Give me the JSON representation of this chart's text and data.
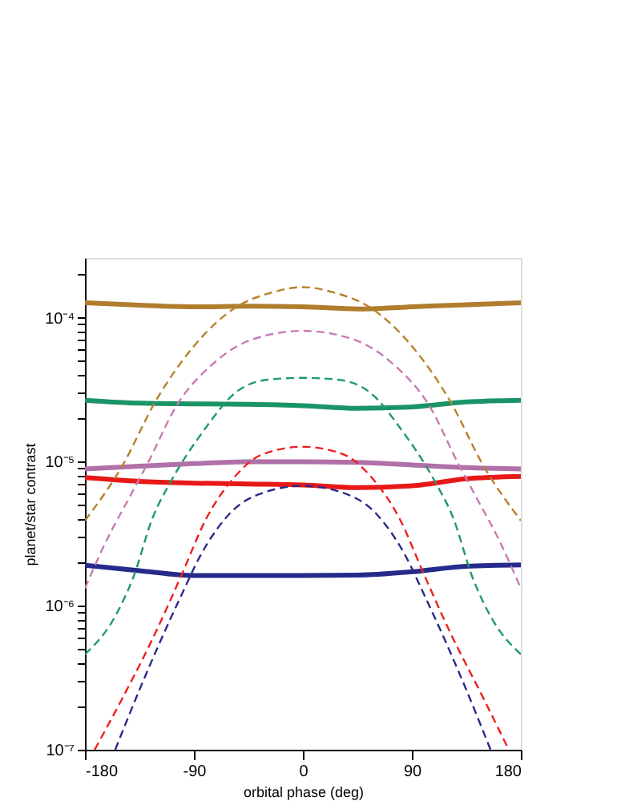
{
  "chart_data": {
    "type": "line",
    "xlabel": "orbital phase (deg)",
    "ylabel": "planet/star contrast",
    "log": "y",
    "grid": false,
    "marker": "none",
    "xlim": [
      -180,
      180
    ],
    "xticks": [
      -180,
      -90,
      0,
      90,
      180
    ],
    "ylim": [
      1e-07,
      0.00026
    ],
    "yticks": [
      {
        "value": 1e-07,
        "label": "10⁻⁷"
      },
      {
        "value": 2e-07,
        "label": null
      },
      {
        "value": 3e-07,
        "label": null
      },
      {
        "value": 4e-07,
        "label": null
      },
      {
        "value": 5e-07,
        "label": null
      },
      {
        "value": 6e-07,
        "label": null
      },
      {
        "value": 7e-07,
        "label": null
      },
      {
        "value": 8e-07,
        "label": null
      },
      {
        "value": 9e-07,
        "label": null
      },
      {
        "value": 1e-06,
        "label": "10⁻⁶"
      },
      {
        "value": 2e-06,
        "label": null
      },
      {
        "value": 3e-06,
        "label": null
      },
      {
        "value": 4e-06,
        "label": null
      },
      {
        "value": 5e-06,
        "label": null
      },
      {
        "value": 6e-06,
        "label": null
      },
      {
        "value": 7e-06,
        "label": null
      },
      {
        "value": 8e-06,
        "label": null
      },
      {
        "value": 9e-06,
        "label": null
      },
      {
        "value": 1e-05,
        "label": "10⁻⁵"
      },
      {
        "value": 2e-05,
        "label": null
      },
      {
        "value": 3e-05,
        "label": null
      },
      {
        "value": 4e-05,
        "label": null
      },
      {
        "value": 5e-05,
        "label": null
      },
      {
        "value": 6e-05,
        "label": null
      },
      {
        "value": 7e-05,
        "label": null
      },
      {
        "value": 8e-05,
        "label": null
      },
      {
        "value": 9e-05,
        "label": null
      },
      {
        "value": 0.0001,
        "label": "10⁻⁴"
      },
      {
        "value": 0.0002,
        "label": null
      }
    ],
    "series": [
      {
        "color": "#b8822a",
        "line_style": "dashed",
        "x": [
          -180,
          -149,
          -122,
          -91,
          -56,
          -25,
          0,
          25,
          56,
          91,
          122,
          149,
          180
        ],
        "values": [
          3.9e-06,
          9.4e-06,
          2.6e-05,
          6.2e-05,
          0.000117,
          0.00015,
          0.000163,
          0.00015,
          0.000117,
          6.2e-05,
          2.6e-05,
          9.4e-06,
          3.9e-06
        ]
      },
      {
        "color": "#c77bb5",
        "line_style": "dashed",
        "x": [
          -180,
          -162,
          -144,
          -127,
          -105,
          -74,
          -43,
          0,
          43,
          74,
          105,
          127,
          144,
          162,
          180
        ],
        "values": [
          1.32e-06,
          2.86e-06,
          5.5e-06,
          1.02e-05,
          2.4e-05,
          4.8e-05,
          7e-05,
          8.1e-05,
          7e-05,
          4.8e-05,
          2.4e-05,
          1.02e-05,
          5.5e-06,
          2.86e-06,
          1.32e-06
        ]
      },
      {
        "color": "#1e9a6a",
        "line_style": "dashed",
        "x": [
          -180,
          -157,
          -140,
          -124,
          -109,
          -82,
          -56,
          -30,
          0,
          30,
          56,
          82,
          109,
          124,
          140,
          157,
          180
        ],
        "values": [
          4.6e-07,
          7.9e-07,
          1.58e-06,
          4.1e-06,
          7.3e-06,
          1.64e-05,
          3e-05,
          3.7e-05,
          3.82e-05,
          3.7e-05,
          3e-05,
          1.64e-05,
          7.3e-06,
          4.1e-06,
          1.58e-06,
          7.9e-07,
          4.6e-07
        ]
      },
      {
        "color": "#ee2020",
        "line_style": "dashed",
        "x": [
          -172,
          -150,
          -121,
          -100,
          -80,
          -56,
          -34,
          0,
          34,
          56,
          80,
          100,
          121,
          150,
          170
        ],
        "values": [
          1e-07,
          2.2e-07,
          6.7e-07,
          1.65e-06,
          4e-06,
          7.9e-06,
          1.12e-05,
          1.27e-05,
          1.12e-05,
          7.9e-06,
          4e-06,
          1.65e-06,
          6.7e-07,
          2.2e-07,
          1e-07
        ]
      },
      {
        "color": "#2a2a8c",
        "line_style": "dashed",
        "x": [
          -155,
          -135,
          -118,
          -100,
          -85,
          -60,
          -30,
          0,
          30,
          60,
          85,
          100,
          118,
          135,
          155
        ],
        "values": [
          1e-07,
          2.6e-07,
          5.6e-07,
          1.2e-06,
          2.2e-06,
          4.4e-06,
          6.2e-06,
          6.8e-06,
          6.2e-06,
          4.4e-06,
          2.2e-06,
          1.2e-06,
          5.6e-07,
          2.6e-07,
          1e-07
        ]
      },
      {
        "color": "#b07d2e",
        "line_style": "solid",
        "x": [
          -180,
          -135,
          -90,
          -45,
          0,
          45,
          90,
          135,
          180
        ],
        "values": [
          0.000127,
          0.000122,
          0.000119,
          0.00012,
          0.000119,
          0.000115,
          0.000119,
          0.000123,
          0.000127
        ]
      },
      {
        "color": "#1a9466",
        "line_style": "solid",
        "x": [
          -180,
          -135,
          -90,
          -45,
          0,
          45,
          90,
          135,
          180
        ],
        "values": [
          2.67e-05,
          2.55e-05,
          2.52e-05,
          2.5e-05,
          2.45e-05,
          2.35e-05,
          2.4e-05,
          2.6e-05,
          2.67e-05
        ]
      },
      {
        "color": "#b070a8",
        "line_style": "solid",
        "x": [
          -180,
          -135,
          -90,
          -45,
          0,
          45,
          90,
          135,
          180
        ],
        "values": [
          8.9e-06,
          9.3e-06,
          9.7e-06,
          1e-05,
          1e-05,
          9.9e-06,
          9.5e-06,
          9.1e-06,
          8.9e-06
        ]
      },
      {
        "color": "#e81818",
        "line_style": "solid",
        "x": [
          -180,
          -135,
          -90,
          -45,
          0,
          45,
          90,
          135,
          180
        ],
        "values": [
          7.75e-06,
          7.3e-06,
          7.1e-06,
          7e-06,
          6.9e-06,
          6.6e-06,
          6.8e-06,
          7.6e-06,
          7.9e-06
        ]
      },
      {
        "color": "#262a8a",
        "line_style": "solid",
        "x": [
          -180,
          -135,
          -90,
          -45,
          0,
          45,
          90,
          135,
          180
        ],
        "values": [
          1.91e-06,
          1.75e-06,
          1.62e-06,
          1.62e-06,
          1.62e-06,
          1.63e-06,
          1.72e-06,
          1.88e-06,
          1.92e-06
        ]
      }
    ]
  }
}
